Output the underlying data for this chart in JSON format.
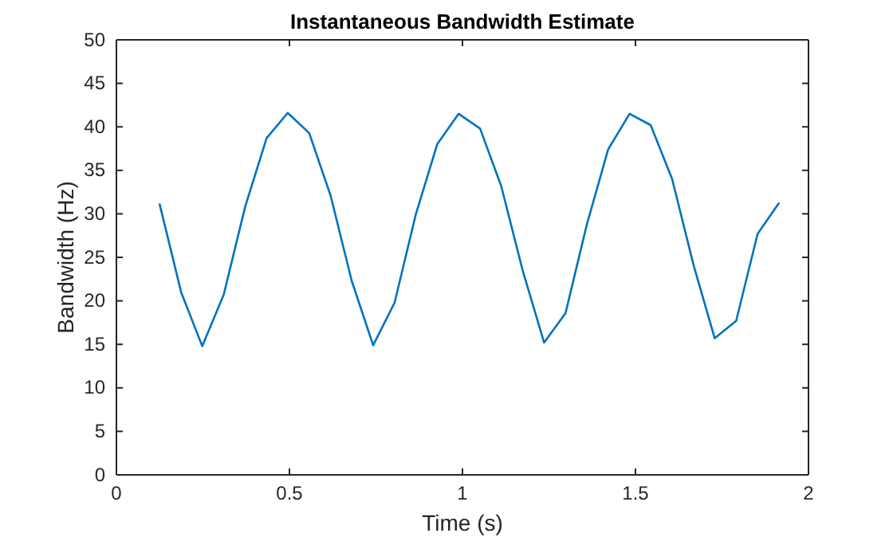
{
  "chart_data": {
    "type": "line",
    "title": "Instantaneous Bandwidth Estimate",
    "xlabel": "Time (s)",
    "ylabel": "Bandwidth (Hz)",
    "x": [
      0.125,
      0.187,
      0.248,
      0.31,
      0.372,
      0.434,
      0.495,
      0.557,
      0.619,
      0.68,
      0.742,
      0.804,
      0.865,
      0.927,
      0.989,
      1.051,
      1.112,
      1.174,
      1.236,
      1.298,
      1.359,
      1.421,
      1.483,
      1.544,
      1.606,
      1.668,
      1.729,
      1.791,
      1.853,
      1.914
    ],
    "series": [
      {
        "color": "#0072bd",
        "values": [
          31.1,
          21.0,
          14.8,
          20.7,
          30.8,
          38.7,
          41.6,
          39.3,
          32.1,
          22.3,
          14.9,
          19.8,
          29.9,
          38.0,
          41.5,
          39.8,
          33.2,
          23.5,
          15.2,
          18.6,
          28.7,
          37.4,
          41.5,
          40.2,
          34.0,
          24.1,
          15.7,
          17.7,
          27.7,
          31.2
        ]
      }
    ],
    "xlim": [
      0,
      2
    ],
    "xticks": [
      0,
      0.5,
      1,
      1.5,
      2
    ],
    "ylim": [
      0,
      50
    ],
    "yticks": [
      0,
      5,
      10,
      15,
      20,
      25,
      30,
      35,
      40,
      45,
      50
    ],
    "grid": false,
    "marker": "none",
    "line_style": "solid"
  }
}
